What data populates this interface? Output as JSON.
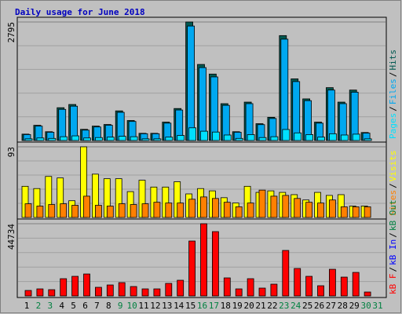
{
  "title": "Daily usage for June 2018",
  "chart_data": [
    {
      "type": "bar",
      "separator": "/",
      "ylim": [
        0,
        2795
      ],
      "yticks": [
        2795
      ],
      "grid": true,
      "series": [
        {
          "name": "Pages",
          "color": "#00e0ff",
          "values": [
            40,
            60,
            50,
            90,
            110,
            60,
            70,
            80,
            100,
            90,
            40,
            40,
            80,
            120,
            300,
            220,
            200,
            130,
            50,
            140,
            70,
            90,
            260,
            180,
            140,
            80,
            160,
            130,
            150,
            40,
            null
          ]
        },
        {
          "name": "Files",
          "color": "#00a8f0",
          "values": [
            140,
            340,
            195,
            735,
            810,
            245,
            320,
            360,
            665,
            450,
            160,
            160,
            410,
            720,
            2700,
            1720,
            1500,
            830,
            195,
            870,
            375,
            520,
            2390,
            1390,
            940,
            410,
            1190,
            870,
            1140,
            175,
            null
          ]
        },
        {
          "name": "Hits",
          "color": "#005850",
          "values": [
            151,
            359,
            208,
            774,
            850,
            264,
            340,
            378,
            699,
            472,
            170,
            170,
            434,
            755,
            2795,
            1794,
            1567,
            869,
            208,
            906,
            397,
            548,
            2474,
            1454,
            982,
            434,
            1247,
            906,
            1190,
            189,
            null
          ]
        }
      ]
    },
    {
      "type": "bar",
      "separator": "/",
      "ylim": [
        0,
        93
      ],
      "yticks": [
        93
      ],
      "grid": true,
      "series": [
        {
          "name": "Sites",
          "color": "#ff8000",
          "values": [
            18,
            15,
            17,
            18,
            16,
            28,
            16,
            15,
            18,
            17,
            18,
            20,
            19,
            19,
            24,
            27,
            25,
            20,
            14,
            19,
            36,
            28,
            29,
            25,
            20,
            19,
            23,
            14,
            14,
            14,
            null
          ]
        },
        {
          "name": "Visits",
          "color": "#ffff00",
          "values": [
            41,
            38,
            54,
            52,
            22,
            93,
            57,
            51,
            51,
            34,
            49,
            40,
            40,
            47,
            31,
            38,
            35,
            26,
            19,
            41,
            33,
            35,
            33,
            30,
            23,
            33,
            29,
            30,
            15,
            15,
            null
          ]
        }
      ]
    },
    {
      "type": "bar",
      "separator": "/",
      "ylim": [
        0,
        44734
      ],
      "yticks": [
        44734
      ],
      "grid": true,
      "categories": [
        "1",
        "2",
        "3",
        "4",
        "5",
        "6",
        "7",
        "8",
        "9",
        "10",
        "11",
        "12",
        "13",
        "14",
        "15",
        "16",
        "17",
        "18",
        "19",
        "20",
        "21",
        "22",
        "23",
        "24",
        "25",
        "26",
        "27",
        "28",
        "29",
        "30",
        "31"
      ],
      "category_colors": [
        "#000000",
        "#008040",
        "#008040",
        "#000000",
        "#000000",
        "#000000",
        "#000000",
        "#000000",
        "#008040",
        "#008040",
        "#000000",
        "#000000",
        "#000000",
        "#000000",
        "#000000",
        "#008040",
        "#008040",
        "#000000",
        "#000000",
        "#000000",
        "#000000",
        "#000000",
        "#008040",
        "#008040",
        "#000000",
        "#000000",
        "#000000",
        "#000000",
        "#000000",
        "#008040",
        "#008040"
      ],
      "series": [
        {
          "name": "kB F",
          "color": "#ff0000",
          "values": [
            3400,
            4370,
            3890,
            10690,
            12150,
            13600,
            5350,
            6800,
            8260,
            5830,
            4370,
            4370,
            7780,
            9720,
            34020,
            44734,
            39850,
            11180,
            4370,
            10690,
            4860,
            7290,
            28190,
            17010,
            12150,
            6320,
            16520,
            11660,
            14580,
            2430,
            null
          ]
        },
        {
          "name": "kB In",
          "color": "#0000ff",
          "values": [
            null,
            null,
            null,
            null,
            null,
            null,
            null,
            null,
            null,
            null,
            null,
            null,
            null,
            null,
            null,
            null,
            null,
            null,
            null,
            null,
            null,
            null,
            null,
            null,
            null,
            null,
            null,
            null,
            null,
            null,
            null
          ]
        },
        {
          "name": "kB Out",
          "color": "#008040",
          "values": [
            null,
            null,
            null,
            null,
            null,
            null,
            null,
            null,
            null,
            null,
            null,
            null,
            null,
            null,
            null,
            null,
            null,
            null,
            null,
            null,
            null,
            null,
            null,
            null,
            null,
            null,
            null,
            null,
            null,
            null,
            null
          ]
        }
      ]
    }
  ]
}
